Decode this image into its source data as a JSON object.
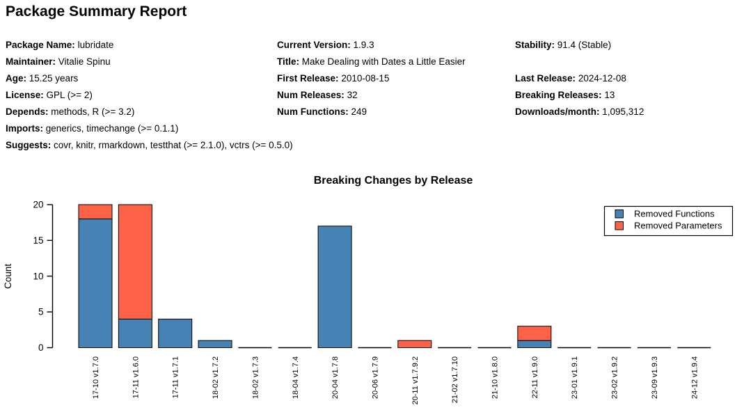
{
  "report": {
    "title": "Package Summary Report"
  },
  "metadata": {
    "col1": [
      {
        "label": "Package Name:",
        "value": "lubridate",
        "row": 0
      },
      {
        "label": "Maintainer:",
        "value": "Vitalie Spinu",
        "row": 1
      },
      {
        "label": "Age:",
        "value": "15.25 years",
        "row": 2
      },
      {
        "label": "License:",
        "value": "GPL (>= 2)",
        "row": 3
      },
      {
        "label": "Depends:",
        "value": "methods, R (>= 3.2)",
        "row": 4
      },
      {
        "label": "Imports:",
        "value": "generics, timechange (>= 0.1.1)",
        "row": 5
      },
      {
        "label": "Suggests:",
        "value": "covr, knitr, rmarkdown, testthat (>= 2.1.0), vctrs (>= 0.5.0)",
        "row": 6
      }
    ],
    "col2": [
      {
        "label": "Current Version:",
        "value": "1.9.3",
        "row": 0
      },
      {
        "label": "Title:",
        "value": "Make Dealing with Dates a Little Easier",
        "row": 1
      },
      {
        "label": "First Release:",
        "value": "2010-08-15",
        "row": 2
      },
      {
        "label": "Num Releases:",
        "value": "32",
        "row": 3
      },
      {
        "label": "Num Functions:",
        "value": "249",
        "row": 4
      }
    ],
    "col3": [
      {
        "label": "Stability:",
        "value": "91.4 (Stable)",
        "row": 0
      },
      {
        "label": "Last Release:",
        "value": "2024-12-08",
        "row": 2
      },
      {
        "label": "Breaking Releases:",
        "value": "13",
        "row": 3
      },
      {
        "label": "Downloads/month:",
        "value": "1,095,312",
        "row": 4
      }
    ]
  },
  "chart_data": {
    "type": "bar",
    "stacked": true,
    "title": "Breaking Changes by Release",
    "xlabel": "",
    "ylabel": "Count",
    "ylim": [
      0,
      20
    ],
    "yticks": [
      0,
      5,
      10,
      15,
      20
    ],
    "grid": false,
    "legend_position": "top-right",
    "categories": [
      "17-10 v1.7.0",
      "17-11 v1.6.0",
      "17-11 v1.7.1",
      "18-02 v1.7.2",
      "18-02 v1.7.3",
      "18-04 v1.7.4",
      "20-04 v1.7.8",
      "20-06 v1.7.9",
      "20-11 v1.7.9.2",
      "21-02 v1.7.10",
      "21-10 v1.8.0",
      "22-11 v1.9.0",
      "23-01 v1.9.1",
      "23-02 v1.9.2",
      "23-09 v1.9.3",
      "24-12 v1.9.4"
    ],
    "series": [
      {
        "name": "Removed Functions",
        "color": "#4682B4",
        "values": [
          18,
          4,
          4,
          1,
          0,
          0,
          17,
          0,
          0,
          0,
          0,
          1,
          0,
          0,
          0,
          0
        ]
      },
      {
        "name": "Removed Parameters",
        "color": "#FF6347",
        "values": [
          2,
          16,
          0,
          0,
          0,
          0,
          0,
          0,
          1,
          0,
          0,
          2,
          0,
          0,
          0,
          0
        ]
      }
    ]
  },
  "colors": {
    "removed_functions": "#4682B4",
    "removed_parameters": "#FF6347",
    "axis": "#000000",
    "background": "#ffffff"
  }
}
